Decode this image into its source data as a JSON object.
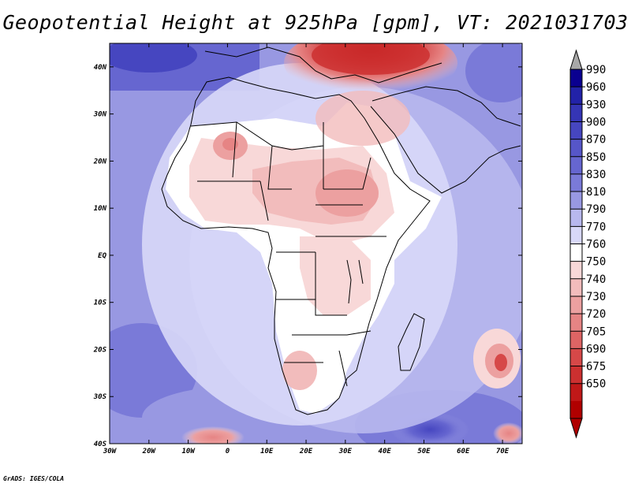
{
  "title": "Geopotential Height at 925hPa [gpm], VT: 2021031703",
  "credit": "GrADS: IGES/COLA",
  "map": {
    "lon_labels": [
      "30W",
      "20W",
      "10W",
      "0",
      "10E",
      "20E",
      "30E",
      "40E",
      "50E",
      "60E",
      "70E"
    ],
    "lat_labels": [
      "40N",
      "30N",
      "20N",
      "10N",
      "EQ",
      "10S",
      "20S",
      "30S",
      "40S"
    ],
    "lon_range": [
      -30,
      75
    ],
    "lat_range": [
      -40,
      45
    ]
  },
  "colorbar": {
    "levels": [
      "990",
      "960",
      "930",
      "900",
      "870",
      "850",
      "830",
      "810",
      "790",
      "770",
      "760",
      "750",
      "740",
      "730",
      "720",
      "705",
      "690",
      "675",
      "650"
    ],
    "colors": [
      "#0a0090",
      "#2222a8",
      "#3535b5",
      "#4646c0",
      "#5656c8",
      "#6666d0",
      "#7a7ad8",
      "#9898e2",
      "#b8b8ee",
      "#d8d8f8",
      "#ffffff",
      "#f8d8d8",
      "#f2bcbc",
      "#eca0a0",
      "#e68484",
      "#de6464",
      "#d64848",
      "#cc3030",
      "#c01818",
      "#b00000"
    ],
    "top_arrow_color": "#a8a8a8"
  }
}
